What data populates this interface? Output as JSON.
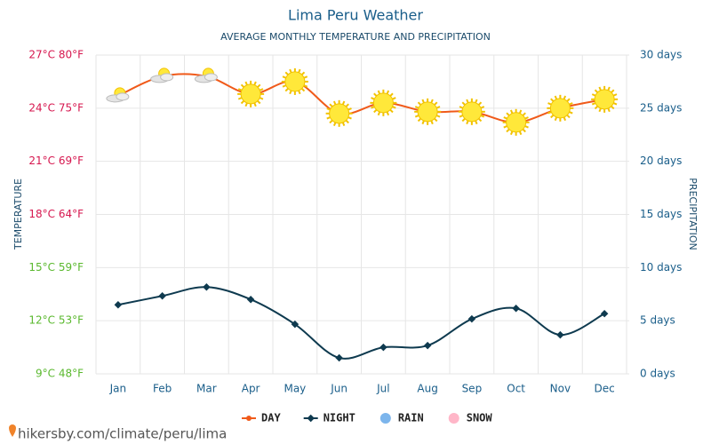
{
  "chart_data": {
    "type": "line",
    "title": "Lima Peru Weather",
    "subtitle": "AVERAGE MONTHLY TEMPERATURE AND PRECIPITATION",
    "y_label": "TEMPERATURE",
    "y2_label": "PRECIPITATION",
    "source": "hikersby.com/climate/peru/lima",
    "categories": [
      "Jan",
      "Feb",
      "Mar",
      "Apr",
      "May",
      "Jun",
      "Jul",
      "Aug",
      "Sep",
      "Oct",
      "Nov",
      "Dec"
    ],
    "series": [
      {
        "name": "DAY",
        "color": "#f05a1a",
        "values": [
          24.7,
          25.8,
          25.8,
          24.8,
          25.5,
          23.7,
          24.3,
          23.8,
          23.8,
          23.2,
          24.0,
          24.5
        ]
      },
      {
        "name": "NIGHT",
        "color": "#0e3a4f",
        "values": [
          12.9,
          13.4,
          13.9,
          13.2,
          11.8,
          9.9,
          10.5,
          10.6,
          12.1,
          12.7,
          11.2,
          12.4
        ]
      },
      {
        "name": "RAIN",
        "color": "#7cb5ec",
        "axis": "y2",
        "values": [
          null,
          null,
          null,
          null,
          null,
          null,
          null,
          null,
          null,
          null,
          null,
          null
        ]
      },
      {
        "name": "SNOW",
        "color": "#ffb6c8",
        "axis": "y2",
        "values": [
          null,
          null,
          null,
          null,
          null,
          null,
          null,
          null,
          null,
          null,
          null,
          null
        ]
      }
    ],
    "ylim": [
      9,
      27
    ],
    "yticks": [
      {
        "value": 27,
        "label": "27°C 80°F",
        "color": "#d6174f"
      },
      {
        "value": 24,
        "label": "24°C 75°F",
        "color": "#d6174f"
      },
      {
        "value": 21,
        "label": "21°C 69°F",
        "color": "#d6174f"
      },
      {
        "value": 18,
        "label": "18°C 64°F",
        "color": "#d6174f"
      },
      {
        "value": 15,
        "label": "15°C 59°F",
        "color": "#5ab82e"
      },
      {
        "value": 12,
        "label": "12°C 53°F",
        "color": "#5ab82e"
      },
      {
        "value": 9,
        "label": "9°C 48°F",
        "color": "#5ab82e"
      }
    ],
    "y2lim": [
      0,
      30
    ],
    "y2ticks": [
      {
        "value": 30,
        "label": "30 days"
      },
      {
        "value": 25,
        "label": "25 days"
      },
      {
        "value": 20,
        "label": "20 days"
      },
      {
        "value": 15,
        "label": "15 days"
      },
      {
        "value": 10,
        "label": "10 days"
      },
      {
        "value": 5,
        "label": "5 days"
      },
      {
        "value": 0,
        "label": "0 days"
      }
    ],
    "grid": true
  }
}
